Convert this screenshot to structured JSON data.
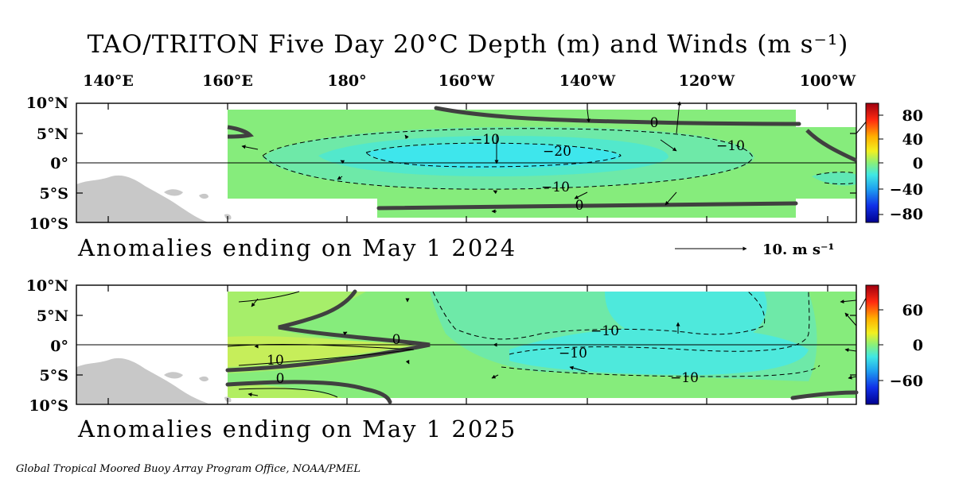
{
  "title": "TAO/TRITON Five Day 20°C Depth (m) and Winds (m s⁻¹)",
  "longitude_labels": [
    "140°E",
    "160°E",
    "180°",
    "160°W",
    "140°W",
    "120°W",
    "100°W"
  ],
  "latitude_labels": [
    "10°N",
    "5°N",
    "0°",
    "5°S",
    "10°S"
  ],
  "panels": [
    {
      "caption": "Anomalies ending on May 1 2024",
      "colorbar_ticks": [
        "80",
        "40",
        "0",
        "−40",
        "−80"
      ],
      "contour_labels": [
        "0",
        "−10",
        "−20",
        "−10",
        "−10",
        "0"
      ],
      "wind_reference_label": "10.  m s⁻¹"
    },
    {
      "caption": "Anomalies ending on May 1 2025",
      "colorbar_ticks": [
        "60",
        "0",
        "−60"
      ],
      "contour_labels": [
        "0",
        "10",
        "0",
        "−10",
        "−10",
        "−10"
      ]
    }
  ],
  "credit": "Global Tropical Moored Buoy Array Program Office, NOAA/PMEL",
  "colors": {
    "field_background": "#86ec7c",
    "negative_anomaly": "#4ee9dc",
    "strong_negative_anomaly": "#3ee6ec",
    "positive_anomaly": "#c6ee5a",
    "land": "#c8c8c8",
    "zero_contour": "#404040"
  }
}
